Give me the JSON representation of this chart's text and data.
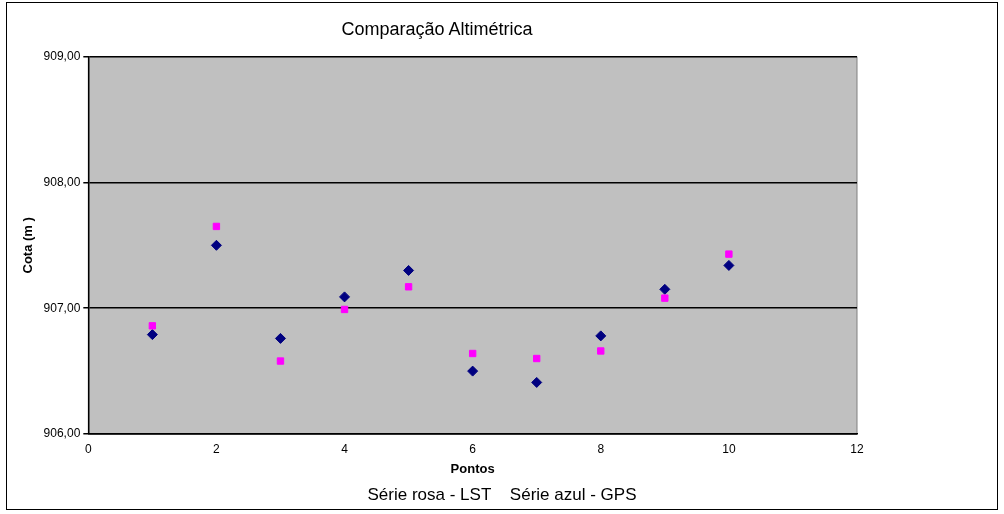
{
  "chart_data": {
    "type": "scatter",
    "title": "Comparação Altimétrica",
    "xlabel": "Pontos",
    "ylabel": "Cota (m )",
    "x": [
      1,
      2,
      3,
      4,
      5,
      6,
      7,
      8,
      9,
      10
    ],
    "series": [
      {
        "color": "#ff00ff",
        "marker": "square",
        "values": [
          906.86,
          907.65,
          906.58,
          906.99,
          907.17,
          906.64,
          906.6,
          906.66,
          907.08,
          907.43
        ]
      },
      {
        "color": "#000080",
        "marker": "diamond",
        "values": [
          906.79,
          907.5,
          906.76,
          907.09,
          907.3,
          906.5,
          906.41,
          906.78,
          907.15,
          907.34
        ]
      }
    ],
    "xlim": [
      0,
      12
    ],
    "xticks": [
      0,
      2,
      4,
      6,
      8,
      10,
      12
    ],
    "ylim": [
      906,
      909
    ],
    "yticks": [
      {
        "value": 906,
        "label": "906,00"
      },
      {
        "value": 907,
        "label": "907,00"
      },
      {
        "value": 908,
        "label": "908,00"
      },
      {
        "value": 909,
        "label": "909,00"
      }
    ],
    "grid": "y",
    "legend": false,
    "annotations": [
      "Série rosa - LST    Série azul - GPS"
    ]
  }
}
